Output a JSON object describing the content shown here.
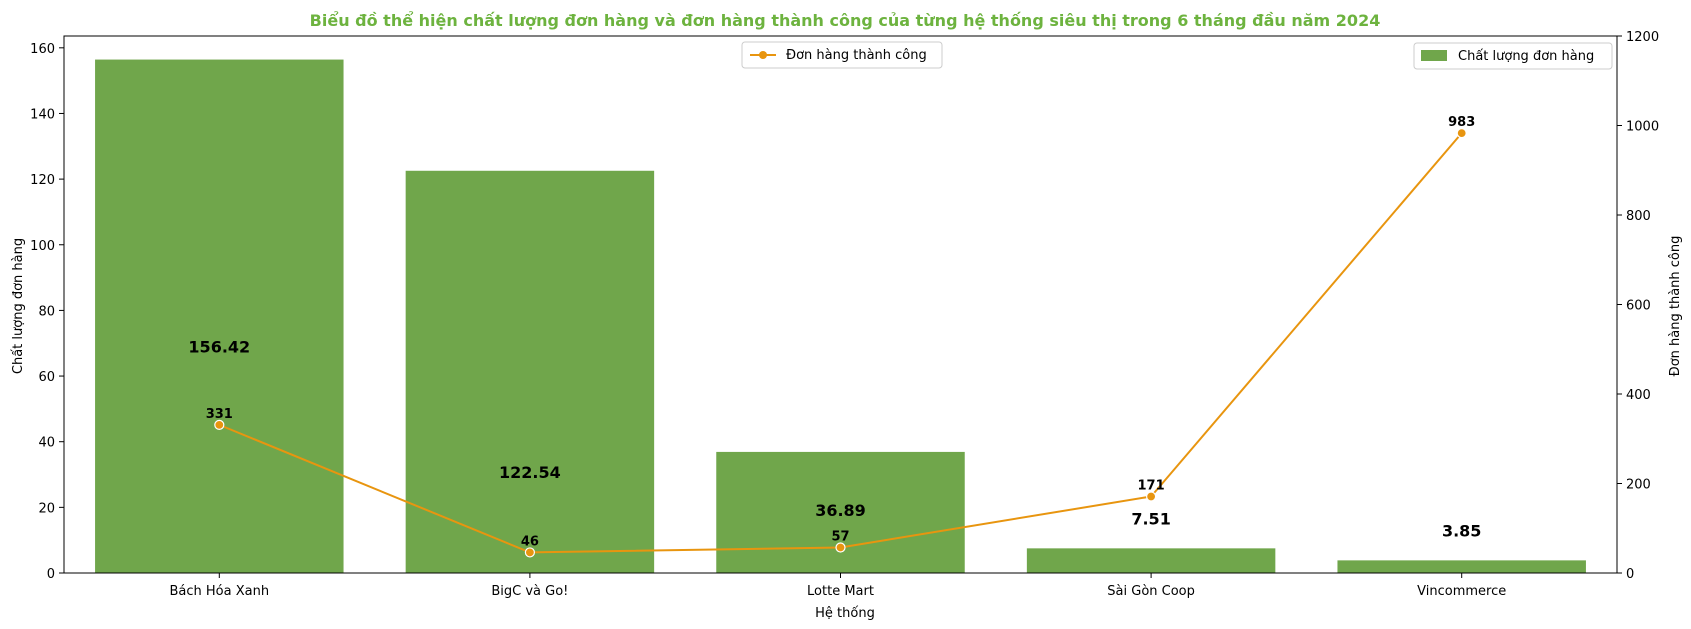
{
  "chart_data": {
    "type": "bar+line",
    "title": "Biểu đồ thể hiện chất lượng đơn hàng và đơn hàng thành công của từng hệ thống siêu thị trong 6 tháng đầu năm 2024",
    "xlabel": "Hệ thống",
    "ylabel_left": "Chất lượng đơn hàng",
    "ylabel_right": "Đơn hàng thành công",
    "categories": [
      "Bách Hóa Xanh",
      "BigC và Go!",
      "Lotte Mart",
      "Sài Gòn Coop",
      "Vincommerce"
    ],
    "series": [
      {
        "name": "Chất lượng đơn hàng",
        "kind": "bar",
        "axis": "left",
        "color": "#70a64b",
        "values": [
          156.42,
          122.54,
          36.89,
          7.51,
          3.85
        ],
        "labels": [
          "156.42",
          "122.54",
          "36.89",
          "7.51",
          "3.85"
        ]
      },
      {
        "name": "Đơn hàng thành công",
        "kind": "line",
        "axis": "right",
        "color": "#e8950f",
        "values": [
          331,
          46,
          57,
          171,
          983
        ],
        "labels": [
          "331",
          "46",
          "57",
          "171",
          "983"
        ]
      }
    ],
    "ylim_left": [
      0,
      163.6
    ],
    "yticks_left": [
      "0",
      "20",
      "40",
      "60",
      "80",
      "100",
      "120",
      "140",
      "160"
    ],
    "ylim_right": [
      0,
      1200
    ],
    "yticks_right": [
      "0",
      "200",
      "400",
      "600",
      "800",
      "1000",
      "1200"
    ],
    "grid": false,
    "legend_line_placement": "top-center",
    "legend_bar_placement": "top-right",
    "title_color": "#6db33f"
  }
}
